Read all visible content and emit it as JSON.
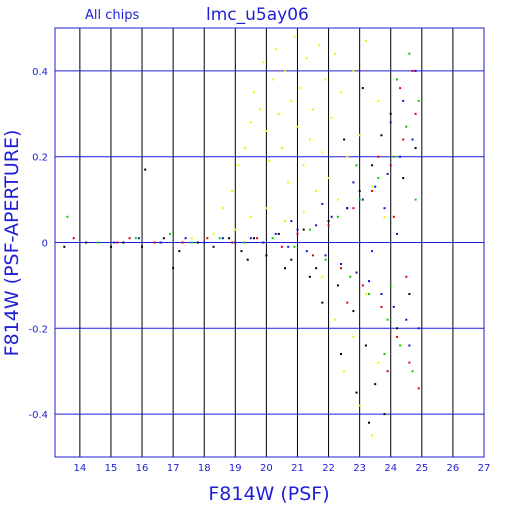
{
  "header": {
    "chips_label": "All chips",
    "title": "lmc_u5ay06"
  },
  "colors": {
    "axis": "#1f1fd6",
    "grid_vertical": "#000000",
    "chip_yellow": "#f2f200",
    "chip_black": "#000000",
    "chip_red": "#e00000",
    "chip_green": "#00d000",
    "chip_blue": "#1010e0"
  },
  "chart_data": {
    "type": "scatter",
    "title": "lmc_u5ay06",
    "subtitle": "All chips",
    "xlabel": "F814W (PSF)",
    "ylabel": "F814W (PSF-APERTURE)",
    "xlim": [
      13.2,
      27.0
    ],
    "ylim": [
      -0.5,
      0.5
    ],
    "x_ticks": [
      14,
      15,
      16,
      17,
      18,
      19,
      20,
      21,
      22,
      23,
      24,
      25,
      26,
      27
    ],
    "y_ticks": [
      0.4,
      0.2,
      0,
      -0.2,
      -0.4
    ],
    "y_tick_labels": [
      "0.4",
      "0.2",
      "0",
      "-0.2",
      "-0.4"
    ],
    "grid": true,
    "series_note": "four chips plotted in distinct colors; thousands of points, approximated here",
    "series": [
      {
        "color_key": "chip_yellow",
        "values": [
          [
            18.6,
            0.08
          ],
          [
            18.9,
            0.12
          ],
          [
            19.1,
            0.18
          ],
          [
            19.3,
            0.22
          ],
          [
            19.5,
            0.28
          ],
          [
            19.6,
            0.35
          ],
          [
            19.8,
            0.31
          ],
          [
            19.9,
            0.42
          ],
          [
            20.0,
            0.26
          ],
          [
            20.1,
            0.19
          ],
          [
            20.2,
            0.38
          ],
          [
            20.3,
            0.45
          ],
          [
            20.4,
            0.3
          ],
          [
            20.5,
            0.22
          ],
          [
            20.6,
            0.4
          ],
          [
            20.7,
            0.14
          ],
          [
            20.8,
            0.33
          ],
          [
            20.9,
            0.48
          ],
          [
            21.0,
            0.27
          ],
          [
            21.1,
            0.36
          ],
          [
            21.2,
            0.18
          ],
          [
            21.3,
            0.43
          ],
          [
            21.4,
            0.24
          ],
          [
            21.5,
            0.31
          ],
          [
            21.6,
            0.12
          ],
          [
            21.7,
            0.46
          ],
          [
            21.8,
            0.21
          ],
          [
            21.9,
            0.38
          ],
          [
            22.0,
            0.15
          ],
          [
            22.1,
            0.29
          ],
          [
            22.2,
            0.44
          ],
          [
            22.3,
            0.1
          ],
          [
            22.4,
            0.35
          ],
          [
            22.6,
            0.2
          ],
          [
            22.8,
            0.4
          ],
          [
            23.0,
            0.25
          ],
          [
            23.2,
            0.47
          ],
          [
            23.4,
            0.13
          ],
          [
            23.6,
            0.33
          ],
          [
            23.8,
            0.06
          ],
          [
            19.5,
            0.06
          ],
          [
            20.0,
            0.08
          ],
          [
            20.6,
            0.05
          ],
          [
            21.2,
            0.07
          ],
          [
            21.8,
            -0.08
          ],
          [
            22.2,
            -0.18
          ],
          [
            22.5,
            -0.3
          ],
          [
            22.8,
            -0.22
          ],
          [
            23.0,
            -0.38
          ],
          [
            23.2,
            -0.12
          ],
          [
            23.4,
            -0.45
          ],
          [
            23.6,
            -0.28
          ],
          [
            19.0,
            0.03
          ],
          [
            18.3,
            0.02
          ],
          [
            17.6,
            0.01
          ]
        ]
      },
      {
        "color_key": "chip_black",
        "values": [
          [
            13.5,
            -0.01
          ],
          [
            14.2,
            0.0
          ],
          [
            15.0,
            -0.01
          ],
          [
            15.4,
            0.0
          ],
          [
            16.0,
            -0.01
          ],
          [
            16.7,
            0.01
          ],
          [
            17.2,
            -0.02
          ],
          [
            17.8,
            0.0
          ],
          [
            18.3,
            -0.01
          ],
          [
            18.8,
            0.01
          ],
          [
            19.2,
            -0.02
          ],
          [
            19.6,
            0.01
          ],
          [
            20.0,
            -0.03
          ],
          [
            20.4,
            0.02
          ],
          [
            20.8,
            -0.04
          ],
          [
            21.2,
            0.03
          ],
          [
            21.6,
            -0.06
          ],
          [
            22.0,
            0.05
          ],
          [
            22.3,
            -0.1
          ],
          [
            22.6,
            0.08
          ],
          [
            22.8,
            -0.16
          ],
          [
            23.0,
            0.12
          ],
          [
            23.2,
            -0.24
          ],
          [
            23.4,
            0.18
          ],
          [
            23.5,
            -0.33
          ],
          [
            23.7,
            0.25
          ],
          [
            23.8,
            -0.4
          ],
          [
            24.0,
            0.3
          ],
          [
            24.2,
            -0.2
          ],
          [
            24.4,
            0.15
          ],
          [
            22.4,
            -0.26
          ],
          [
            22.9,
            -0.35
          ],
          [
            23.3,
            -0.42
          ],
          [
            21.8,
            -0.14
          ],
          [
            21.4,
            -0.08
          ],
          [
            20.6,
            -0.06
          ],
          [
            19.4,
            -0.04
          ],
          [
            16.1,
            0.17
          ],
          [
            17.0,
            -0.06
          ],
          [
            24.6,
            -0.12
          ],
          [
            24.8,
            0.22
          ],
          [
            23.1,
            0.36
          ],
          [
            22.5,
            0.24
          ]
        ]
      },
      {
        "color_key": "chip_red",
        "values": [
          [
            13.8,
            0.01
          ],
          [
            15.2,
            0.0
          ],
          [
            15.6,
            0.01
          ],
          [
            16.4,
            0.0
          ],
          [
            17.3,
            0.0
          ],
          [
            18.1,
            0.01
          ],
          [
            18.9,
            0.0
          ],
          [
            19.7,
            0.01
          ],
          [
            20.5,
            -0.01
          ],
          [
            21.0,
            0.02
          ],
          [
            21.5,
            -0.03
          ],
          [
            22.0,
            0.04
          ],
          [
            22.4,
            -0.06
          ],
          [
            22.8,
            0.08
          ],
          [
            23.1,
            -0.1
          ],
          [
            23.4,
            0.12
          ],
          [
            23.7,
            -0.15
          ],
          [
            24.0,
            0.18
          ],
          [
            24.2,
            -0.22
          ],
          [
            24.4,
            0.24
          ],
          [
            24.6,
            -0.28
          ],
          [
            24.8,
            0.3
          ],
          [
            24.9,
            -0.34
          ],
          [
            23.9,
            -0.3
          ],
          [
            24.3,
            0.36
          ],
          [
            24.7,
            0.4
          ],
          [
            23.6,
            0.2
          ],
          [
            22.6,
            -0.14
          ],
          [
            24.5,
            -0.08
          ],
          [
            24.1,
            0.06
          ]
        ]
      },
      {
        "color_key": "chip_green",
        "values": [
          [
            13.6,
            0.06
          ],
          [
            14.6,
            0.0
          ],
          [
            15.8,
            0.01
          ],
          [
            16.9,
            0.02
          ],
          [
            17.6,
            0.0
          ],
          [
            18.5,
            0.01
          ],
          [
            19.3,
            0.0
          ],
          [
            20.2,
            0.01
          ],
          [
            20.9,
            -0.01
          ],
          [
            21.4,
            0.03
          ],
          [
            21.9,
            -0.04
          ],
          [
            22.3,
            0.06
          ],
          [
            22.7,
            -0.08
          ],
          [
            23.0,
            0.1
          ],
          [
            23.3,
            -0.12
          ],
          [
            23.6,
            0.15
          ],
          [
            23.9,
            -0.18
          ],
          [
            24.1,
            0.2
          ],
          [
            24.3,
            -0.24
          ],
          [
            24.5,
            0.27
          ],
          [
            24.7,
            -0.3
          ],
          [
            24.9,
            0.33
          ],
          [
            24.2,
            0.38
          ],
          [
            24.6,
            0.44
          ],
          [
            23.8,
            -0.26
          ],
          [
            22.9,
            0.18
          ],
          [
            24.0,
            -0.1
          ],
          [
            24.8,
            0.1
          ]
        ]
      },
      {
        "color_key": "chip_blue",
        "values": [
          [
            15.1,
            0.0
          ],
          [
            15.9,
            0.01
          ],
          [
            16.6,
            0.0
          ],
          [
            17.4,
            0.01
          ],
          [
            18.0,
            0.0
          ],
          [
            18.6,
            0.01
          ],
          [
            19.0,
            0.0
          ],
          [
            19.5,
            0.01
          ],
          [
            19.9,
            0.0
          ],
          [
            20.3,
            0.02
          ],
          [
            20.7,
            -0.01
          ],
          [
            21.0,
            0.03
          ],
          [
            21.3,
            -0.02
          ],
          [
            21.6,
            0.04
          ],
          [
            21.9,
            -0.03
          ],
          [
            22.1,
            0.06
          ],
          [
            22.4,
            -0.05
          ],
          [
            22.6,
            0.08
          ],
          [
            22.9,
            -0.07
          ],
          [
            23.1,
            0.1
          ],
          [
            23.3,
            -0.09
          ],
          [
            23.5,
            0.13
          ],
          [
            23.7,
            -0.12
          ],
          [
            23.9,
            0.16
          ],
          [
            24.1,
            -0.15
          ],
          [
            24.3,
            0.2
          ],
          [
            24.5,
            -0.18
          ],
          [
            24.7,
            0.24
          ],
          [
            24.9,
            -0.2
          ],
          [
            24.0,
            0.28
          ],
          [
            24.4,
            0.33
          ],
          [
            24.8,
            0.4
          ],
          [
            24.6,
            -0.24
          ],
          [
            23.8,
            0.08
          ],
          [
            22.8,
            0.14
          ],
          [
            21.8,
            0.09
          ],
          [
            20.8,
            0.05
          ],
          [
            24.2,
            0.02
          ],
          [
            23.4,
            -0.02
          ]
        ]
      }
    ]
  }
}
